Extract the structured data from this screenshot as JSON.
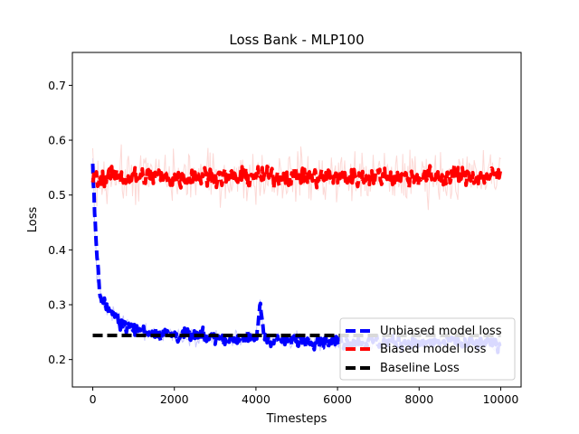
{
  "chart_data": {
    "type": "line",
    "title": "Loss Bank - MLP100",
    "xlabel": "Timesteps",
    "ylabel": "Loss",
    "xlim": [
      -500,
      10500
    ],
    "ylim": [
      0.15,
      0.76
    ],
    "xticks": [
      0,
      2000,
      4000,
      6000,
      8000,
      10000
    ],
    "yticks": [
      0.2,
      0.3,
      0.4,
      0.5,
      0.6,
      0.7
    ],
    "grid": false,
    "legend_position": "lower-right",
    "series": [
      {
        "name": "Unbiased model loss",
        "color": "#0000ff",
        "raw_color": "#c8c8ff",
        "linestyle": "dashed",
        "x": [
          0,
          50,
          100,
          150,
          200,
          300,
          400,
          500,
          750,
          1000,
          1500,
          2000,
          2500,
          3000,
          3500,
          4000,
          4100,
          4200,
          4500,
          5000,
          5500,
          6000,
          6500,
          7000,
          7500,
          8000,
          8500,
          9000,
          9500,
          10000
        ],
        "values": [
          0.55,
          0.45,
          0.38,
          0.33,
          0.31,
          0.3,
          0.29,
          0.28,
          0.265,
          0.255,
          0.25,
          0.245,
          0.243,
          0.24,
          0.238,
          0.237,
          0.3,
          0.24,
          0.236,
          0.235,
          0.234,
          0.233,
          0.232,
          0.232,
          0.231,
          0.23,
          0.23,
          0.229,
          0.229,
          0.228
        ]
      },
      {
        "name": "Biased model loss",
        "color": "#ff0000",
        "raw_color": "#fcd9d6",
        "linestyle": "dashed",
        "x": [
          0,
          100,
          500,
          1000,
          1500,
          2000,
          2500,
          3000,
          3500,
          4000,
          4500,
          5000,
          5500,
          6000,
          6500,
          7000,
          7500,
          8000,
          8500,
          9000,
          9500,
          10000
        ],
        "values": [
          0.54,
          0.53,
          0.535,
          0.532,
          0.535,
          0.53,
          0.536,
          0.535,
          0.532,
          0.534,
          0.533,
          0.535,
          0.532,
          0.534,
          0.533,
          0.535,
          0.532,
          0.534,
          0.533,
          0.534,
          0.533,
          0.535
        ]
      },
      {
        "name": "Baseline Loss",
        "color": "#000000",
        "linestyle": "dashed",
        "x": [
          0,
          10000
        ],
        "values": [
          0.244,
          0.244
        ]
      }
    ]
  }
}
